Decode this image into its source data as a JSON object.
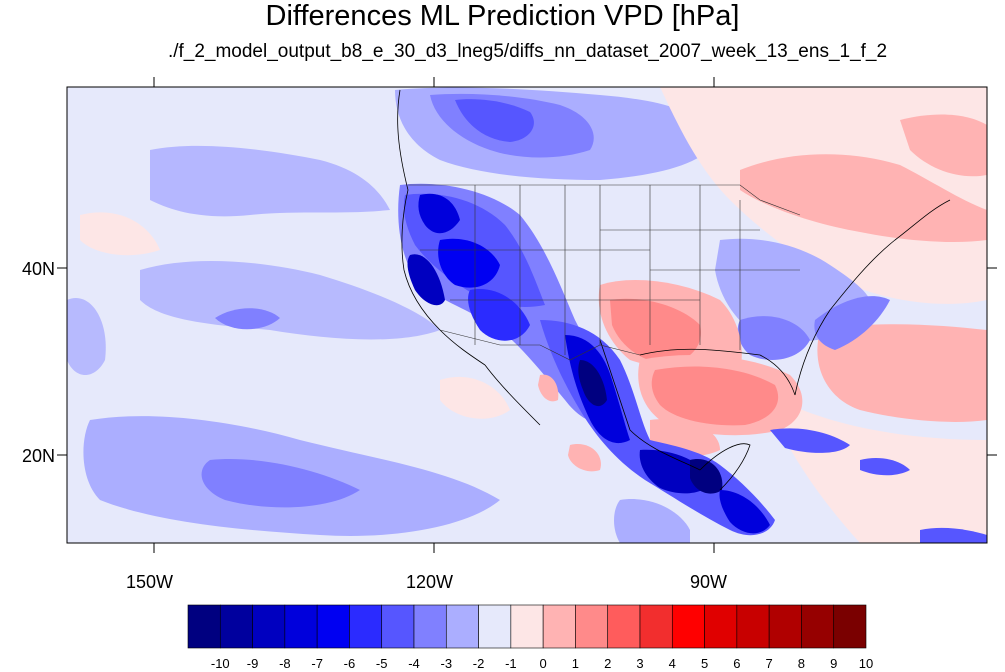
{
  "title": "Differences ML Prediction VPD [hPa]",
  "subtitle": "./f_2_model_output_b8_e_30_d3_lneg5/diffs_nn_dataset_2007_week_13_ens_1_f_2",
  "map": {
    "background_color": "#e6e9fb",
    "lat_labels": [
      "40N",
      "20N"
    ],
    "lon_labels": [
      "150W",
      "120W",
      "90W"
    ]
  },
  "colorbar": {
    "labels": [
      "-10",
      "-9",
      "-8",
      "-7",
      "-6",
      "-5",
      "-4",
      "-3",
      "-2",
      "-1",
      "0",
      "1",
      "2",
      "3",
      "4",
      "5",
      "6",
      "7",
      "8",
      "9",
      "10"
    ],
    "colors": [
      "#000080",
      "#00009e",
      "#0000c0",
      "#0000dc",
      "#0000f2",
      "#2b2bff",
      "#5656ff",
      "#8080ff",
      "#abaeff",
      "#e6e9fb",
      "#fde6e6",
      "#ffb3b3",
      "#ff8a8a",
      "#ff5c5c",
      "#f22e2e",
      "#ff0000",
      "#e00000",
      "#c80000",
      "#b00000",
      "#960000",
      "#7a0000"
    ]
  }
}
